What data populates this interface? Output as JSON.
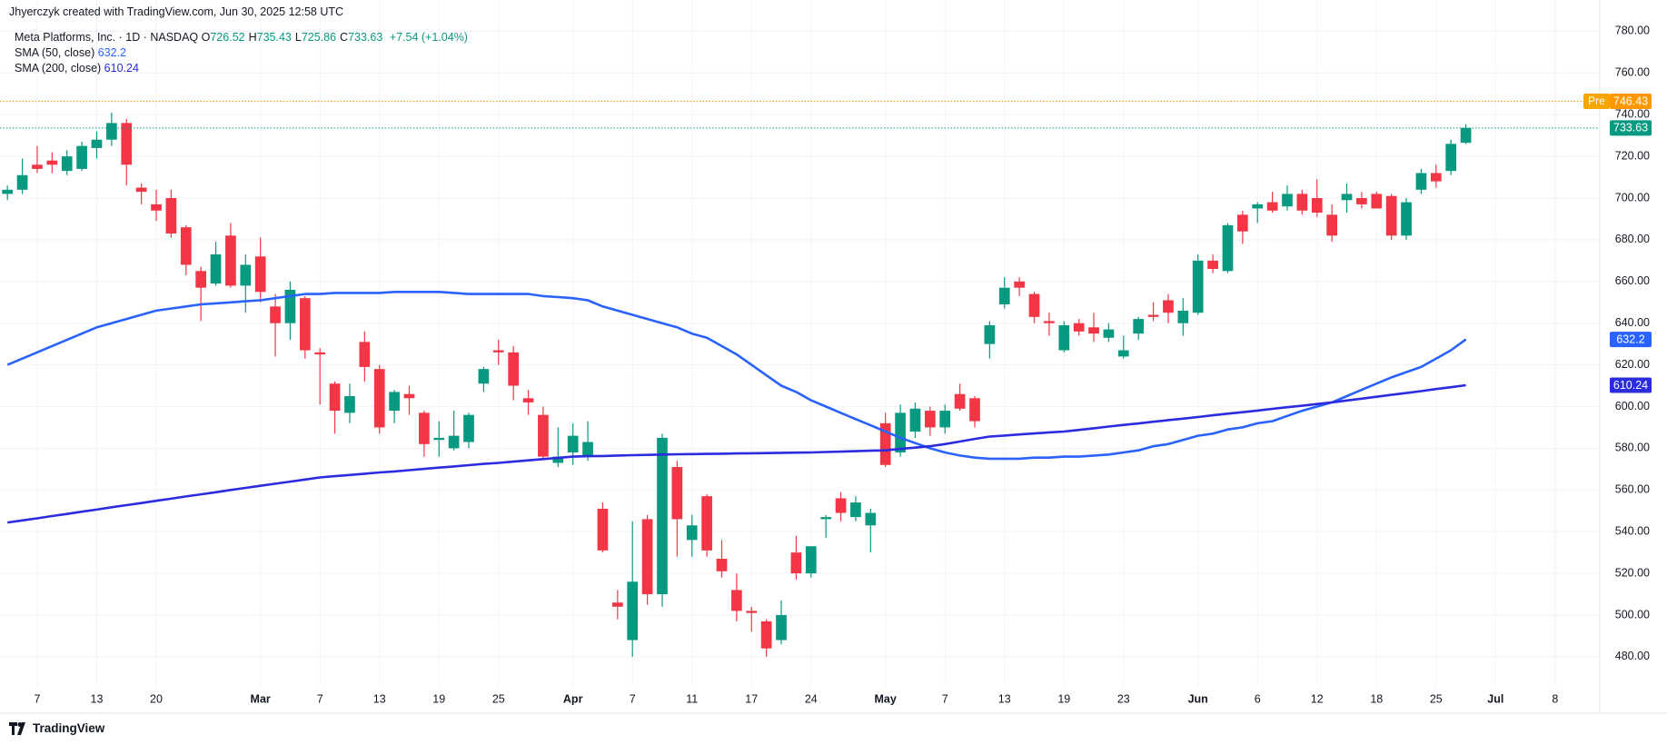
{
  "chart_data": {
    "type": "candlestick",
    "header": "Jhyerczyk created with TradingView.com, Jun 30, 2025 12:58 UTC",
    "symbol": "Meta Platforms, Inc. · 1D · NASDAQ",
    "ohlc_legend": [
      {
        "label": "O",
        "text": "726.52"
      },
      {
        "label": "H",
        "text": "735.43"
      },
      {
        "label": "L",
        "text": "725.86"
      },
      {
        "label": "C",
        "text": "733.63"
      }
    ],
    "change": "+7.54 (+1.04%)",
    "footer": "TradingView",
    "up_color": "#089981",
    "down_color": "#f23645",
    "grid": true,
    "x": [
      "Feb 5",
      "Feb 6",
      "Feb 7",
      "Feb 10",
      "Feb 11",
      "Feb 12",
      "Feb 13",
      "Feb 14",
      "Feb 18",
      "Feb 19",
      "Feb 20",
      "Feb 21",
      "Feb 24",
      "Feb 25",
      "Feb 26",
      "Feb 27",
      "Feb 28",
      "Mar 3",
      "Mar 4",
      "Mar 5",
      "Mar 6",
      "Mar 7",
      "Mar 10",
      "Mar 11",
      "Mar 12",
      "Mar 13",
      "Mar 14",
      "Mar 17",
      "Mar 18",
      "Mar 19",
      "Mar 20",
      "Mar 21",
      "Mar 24",
      "Mar 25",
      "Mar 26",
      "Mar 27",
      "Mar 28",
      "Mar 31",
      "Apr 1",
      "Apr 2",
      "Apr 3",
      "Apr 4",
      "Apr 7",
      "Apr 8",
      "Apr 9",
      "Apr 10",
      "Apr 11",
      "Apr 14",
      "Apr 15",
      "Apr 16",
      "Apr 17",
      "Apr 21",
      "Apr 22",
      "Apr 23",
      "Apr 24",
      "Apr 25",
      "Apr 28",
      "Apr 29",
      "Apr 30",
      "May 1",
      "May 2",
      "May 5",
      "May 6",
      "May 7",
      "May 8",
      "May 9",
      "May 12",
      "May 13",
      "May 14",
      "May 15",
      "May 16",
      "May 19",
      "May 20",
      "May 21",
      "May 22",
      "May 23",
      "May 27",
      "May 28",
      "May 29",
      "May 30",
      "Jun 2",
      "Jun 3",
      "Jun 4",
      "Jun 5",
      "Jun 6",
      "Jun 9",
      "Jun 10",
      "Jun 11",
      "Jun 12",
      "Jun 13",
      "Jun 16",
      "Jun 17",
      "Jun 18",
      "Jun 20",
      "Jun 23",
      "Jun 24",
      "Jun 25",
      "Jun 26",
      "Jun 27"
    ],
    "open": [
      702,
      704,
      716,
      718,
      713,
      714,
      724,
      728,
      736,
      705,
      697,
      700,
      686,
      665,
      659,
      682,
      658,
      672,
      648,
      640,
      652,
      626,
      611,
      597,
      631,
      618,
      598,
      606,
      597,
      584,
      580,
      583,
      611,
      627,
      626,
      604,
      596,
      573,
      578,
      576,
      551,
      506,
      488,
      546,
      510,
      571,
      536,
      557,
      527,
      512,
      502,
      497,
      488,
      530,
      520,
      546,
      556,
      547,
      543,
      592,
      578,
      588,
      598,
      590,
      606,
      604,
      630,
      649,
      660,
      654,
      641,
      627,
      640,
      638,
      633,
      624,
      635,
      644,
      651,
      640,
      645,
      670,
      665,
      692,
      695,
      698,
      696,
      702,
      700,
      692,
      699,
      700,
      702,
      701,
      682,
      704,
      712,
      713,
      726.52
    ],
    "high": [
      706,
      719,
      725,
      722,
      723,
      727,
      732,
      741,
      738,
      707,
      704,
      704,
      687,
      667,
      679,
      688,
      673,
      681,
      654,
      660,
      653,
      628,
      612,
      611,
      636,
      620,
      608,
      610,
      598,
      593,
      598,
      597,
      619,
      632,
      629,
      608,
      600,
      590,
      592,
      593,
      554,
      512,
      545,
      548,
      587,
      574,
      548,
      558,
      536,
      520,
      504,
      498,
      507,
      538,
      533,
      548,
      559,
      557,
      551,
      597,
      601,
      602,
      600,
      601,
      611,
      605,
      641,
      662,
      662,
      655,
      645,
      641,
      642,
      645,
      640,
      634,
      643,
      650,
      654,
      652,
      673,
      673,
      688,
      694,
      698,
      703,
      706,
      704,
      709,
      697,
      707,
      703,
      703,
      702,
      700,
      714,
      716,
      728,
      735.43
    ],
    "low": [
      699,
      702,
      712,
      712,
      711,
      713,
      719,
      725,
      706,
      697,
      689,
      681,
      663,
      641,
      658,
      657,
      645,
      650,
      624,
      632,
      623,
      601,
      587,
      592,
      612,
      587,
      592,
      596,
      576,
      576,
      579,
      580,
      607,
      620,
      603,
      596,
      575,
      571,
      572,
      574,
      530,
      498,
      480,
      505,
      504,
      528,
      528,
      528,
      518,
      497,
      492,
      480,
      486,
      517,
      518,
      537,
      545,
      545,
      530,
      571,
      576,
      585,
      586,
      587,
      598,
      590,
      623,
      647,
      653,
      640,
      634,
      626,
      634,
      631,
      631,
      623,
      632,
      641,
      640,
      634,
      644,
      664,
      664,
      678,
      688,
      693,
      694,
      692,
      691,
      679,
      693,
      695,
      695,
      680,
      680,
      702,
      705,
      711,
      725.86
    ],
    "close": [
      704,
      711,
      714,
      716,
      720,
      725,
      728,
      736,
      716,
      703,
      694,
      683,
      668,
      657,
      673,
      658,
      668,
      655,
      640,
      656,
      627,
      625,
      598,
      605,
      619,
      590,
      607,
      604,
      582,
      585,
      586,
      596,
      618,
      626,
      610,
      602,
      576,
      576,
      586,
      583,
      531,
      504,
      516,
      510,
      585,
      546,
      543,
      531,
      521,
      502,
      501,
      484,
      500,
      520,
      533,
      547,
      549,
      554,
      549,
      572,
      597,
      599,
      590,
      598,
      599,
      593,
      639,
      657,
      657,
      643,
      640,
      639,
      636,
      635,
      637,
      627,
      642,
      643,
      645,
      646,
      670,
      666,
      687,
      684,
      697,
      694,
      702,
      694,
      693,
      682,
      702,
      697,
      695,
      682,
      698,
      712,
      708,
      726,
      733.63
    ],
    "overlays": [
      {
        "name": "SMA (50, close)",
        "value_label": "632.2",
        "color": "#2962ff",
        "values": [
          620,
          623,
          626,
          629,
          632,
          635,
          638,
          640,
          642,
          644,
          646,
          647,
          648,
          649,
          649.5,
          650,
          650.5,
          651,
          652,
          653,
          654,
          654,
          654.5,
          654.5,
          654.5,
          654.5,
          655,
          655,
          655,
          655,
          654.5,
          654,
          654,
          654,
          654,
          654,
          653,
          652.5,
          652,
          651,
          648,
          646,
          644,
          642,
          640,
          638,
          635,
          633,
          629,
          625,
          620,
          615,
          610,
          607,
          603,
          600,
          597,
          594,
          591,
          588,
          585,
          582.5,
          580,
          578,
          576.5,
          575.5,
          575,
          575,
          575,
          575.5,
          575.5,
          576,
          576,
          576.5,
          577,
          578,
          579,
          581,
          582,
          584,
          586,
          587,
          589,
          590,
          592,
          593,
          595.5,
          598,
          600,
          602,
          605,
          608,
          611,
          614,
          616.5,
          619,
          623,
          627,
          632.2
        ]
      },
      {
        "name": "SMA (200, close)",
        "value_label": "610.24",
        "color": "#2b2be0",
        "values": [
          544.4,
          545.4,
          546.4,
          547.5,
          548.5,
          549.6,
          550.6,
          551.7,
          552.7,
          553.7,
          554.8,
          555.8,
          556.9,
          557.9,
          558.9,
          560,
          561,
          562,
          563,
          564,
          565,
          566,
          566.6,
          567.2,
          567.8,
          568.4,
          568.9,
          569.5,
          570.1,
          570.7,
          571.3,
          571.9,
          572.5,
          573,
          573.6,
          574.2,
          574.8,
          575.4,
          576,
          576.2,
          576.3,
          576.5,
          576.7,
          576.8,
          577,
          577.1,
          577.2,
          577.3,
          577.4,
          577.5,
          577.6,
          577.7,
          577.8,
          577.9,
          578,
          578.2,
          578.4,
          578.6,
          578.8,
          579,
          579.7,
          580.3,
          581,
          582,
          583.2,
          584.5,
          585.6,
          586.1,
          586.6,
          587.1,
          587.6,
          588,
          588.8,
          589.6,
          590.4,
          591.2,
          591.9,
          592.7,
          593.5,
          594.2,
          595,
          595.8,
          596.6,
          597.3,
          598.1,
          598.9,
          599.7,
          600.4,
          601.2,
          602,
          602.9,
          603.8,
          604.7,
          605.6,
          606.5,
          607.4,
          608.4,
          609.3,
          610.24
        ]
      }
    ],
    "premarket": {
      "label": "Pre",
      "value": 746.43,
      "color": "#ff9800"
    },
    "ylim": [
      466,
      795
    ],
    "yticks": [
      {
        "value": 480,
        "label": "480.00"
      },
      {
        "value": 500,
        "label": "500.00"
      },
      {
        "value": 520,
        "label": "520.00"
      },
      {
        "value": 540,
        "label": "540.00"
      },
      {
        "value": 560,
        "label": "560.00"
      },
      {
        "value": 580,
        "label": "580.00"
      },
      {
        "value": 600,
        "label": "600.00"
      },
      {
        "value": 620,
        "label": "620.00"
      },
      {
        "value": 640,
        "label": "640.00"
      },
      {
        "value": 660,
        "label": "660.00"
      },
      {
        "value": 680,
        "label": "680.00"
      },
      {
        "value": 700,
        "label": "700.00"
      },
      {
        "value": 720,
        "label": "720.00"
      },
      {
        "value": 740,
        "label": "740.00"
      },
      {
        "value": 760,
        "label": "760.00"
      },
      {
        "value": 780,
        "label": "780.00"
      }
    ],
    "xlim": [
      -0.5,
      107
    ],
    "xticks": [
      {
        "value": 2,
        "label": "7"
      },
      {
        "value": 6,
        "label": "13"
      },
      {
        "value": 10,
        "label": "20"
      },
      {
        "value": 17,
        "label": "Mar"
      },
      {
        "value": 21,
        "label": "7"
      },
      {
        "value": 25,
        "label": "13"
      },
      {
        "value": 29,
        "label": "19"
      },
      {
        "value": 33,
        "label": "25"
      },
      {
        "value": 38,
        "label": "Apr"
      },
      {
        "value": 42,
        "label": "7"
      },
      {
        "value": 46,
        "label": "11"
      },
      {
        "value": 50,
        "label": "17"
      },
      {
        "value": 54,
        "label": "24"
      },
      {
        "value": 59,
        "label": "May"
      },
      {
        "value": 63,
        "label": "7"
      },
      {
        "value": 67,
        "label": "13"
      },
      {
        "value": 71,
        "label": "19"
      },
      {
        "value": 75,
        "label": "23"
      },
      {
        "value": 80,
        "label": "Jun"
      },
      {
        "value": 84,
        "label": "6"
      },
      {
        "value": 88,
        "label": "12"
      },
      {
        "value": 92,
        "label": "18"
      },
      {
        "value": 96,
        "label": "25"
      },
      {
        "value": 100,
        "label": "Jul"
      },
      {
        "value": 104,
        "label": "8"
      }
    ]
  }
}
